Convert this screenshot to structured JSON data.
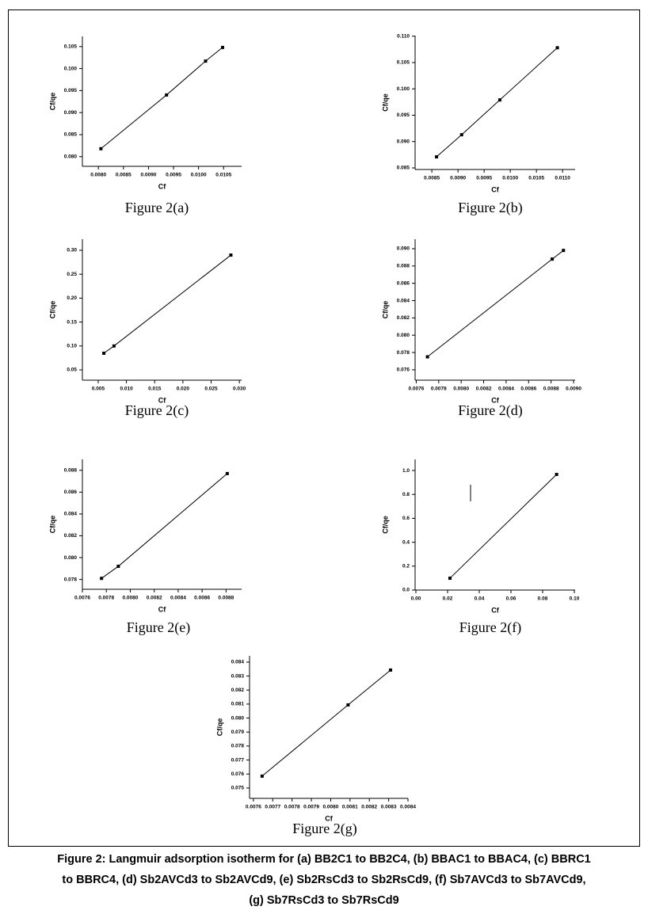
{
  "chart_data": [
    {
      "type": "line",
      "caption": "Figure 2(a)",
      "xlabel": "Cf",
      "ylabel": "Cf/qe",
      "color": "#000000",
      "x": [
        0.00805,
        0.00936,
        0.01014,
        0.01048
      ],
      "values": [
        0.0818,
        0.094,
        0.1017,
        0.1048
      ],
      "xlim": [
        0.00768,
        0.01086
      ],
      "ylim": [
        0.0778,
        0.1073
      ],
      "xticks": [
        {
          "value": 0.008,
          "label": "0.0080"
        },
        0.0085,
        {
          "value": 0.009,
          "label": "0.0090"
        },
        0.0095,
        {
          "value": 0.01,
          "label": "0.0100"
        },
        0.0105
      ],
      "yticks": [
        {
          "value": 0.08,
          "label": "0.080"
        },
        0.085,
        {
          "value": 0.09,
          "label": "0.090"
        },
        0.095,
        {
          "value": 0.1,
          "label": "0.100"
        },
        0.105
      ]
    },
    {
      "type": "line",
      "caption": "Figure 2(b)",
      "xlabel": "Cf",
      "ylabel": "Cf/qe",
      "color": "#000000",
      "x": [
        0.00859,
        0.00907,
        0.0098,
        0.0109
      ],
      "values": [
        0.0871,
        0.0913,
        0.0979,
        0.1078
      ],
      "xlim": [
        0.00818,
        0.01124
      ],
      "ylim": [
        0.0847,
        0.1101
      ],
      "xticks": [
        0.0085,
        {
          "value": 0.009,
          "label": "0.0090"
        },
        0.0095,
        {
          "value": 0.01,
          "label": "0.0100"
        },
        0.0105,
        {
          "value": 0.011,
          "label": "0.0110"
        }
      ],
      "yticks": [
        0.085,
        {
          "value": 0.09,
          "label": "0.090"
        },
        0.095,
        {
          "value": 0.1,
          "label": "0.100"
        },
        0.105,
        {
          "value": 0.11,
          "label": "0.110"
        }
      ]
    },
    {
      "type": "line",
      "caption": "Figure 2(c)",
      "xlabel": "Cf",
      "ylabel": "Cf/qe",
      "color": "#000000",
      "x": [
        0.006,
        0.0078,
        0.0285
      ],
      "values": [
        0.0848,
        0.1,
        0.29
      ],
      "xlim": [
        0.0022,
        0.0304
      ],
      "ylim": [
        0.0285,
        0.3232
      ],
      "xticks": [
        0.005,
        {
          "value": 0.01,
          "label": "0.010"
        },
        0.015,
        {
          "value": 0.02,
          "label": "0.020"
        },
        0.025,
        {
          "value": 0.03,
          "label": "0.030"
        }
      ],
      "yticks": [
        0.05,
        {
          "value": 0.1,
          "label": "0.10"
        },
        0.15,
        {
          "value": 0.2,
          "label": "0.20"
        },
        0.25,
        {
          "value": 0.3,
          "label": "0.30"
        }
      ]
    },
    {
      "type": "line",
      "caption": "Figure 2(d)",
      "xlabel": "Cf",
      "ylabel": "Cf/qe",
      "color": "#000000",
      "x": [
        0.0077,
        0.00881,
        0.00891
      ],
      "values": [
        0.0775,
        0.0888,
        0.0898
      ],
      "xlim": [
        0.00759,
        0.009014
      ],
      "ylim": [
        0.0748,
        0.0911
      ],
      "xticks": [
        0.0076,
        0.0078,
        {
          "value": 0.008,
          "label": "0.0080"
        },
        0.0082,
        0.0084,
        0.0086,
        0.0088,
        {
          "value": 0.009,
          "label": "0.0090"
        }
      ],
      "yticks": [
        0.076,
        0.078,
        {
          "value": 0.08,
          "label": "0.080"
        },
        0.082,
        0.084,
        0.086,
        0.088,
        {
          "value": 0.09,
          "label": "0.090"
        }
      ]
    },
    {
      "type": "line",
      "caption": "Figure 2(e)",
      "xlabel": "Cf",
      "ylabel": "Cf/qe",
      "color": "#000000",
      "x": [
        0.00776,
        0.0079,
        0.00881
      ],
      "values": [
        0.0781,
        0.0792,
        0.0877
      ],
      "xlim": [
        0.0076,
        0.00893
      ],
      "ylim": [
        0.0771,
        0.089
      ],
      "xticks": [
        0.0076,
        0.0078,
        {
          "value": 0.008,
          "label": "0.0080"
        },
        0.0082,
        0.0084,
        0.0086,
        0.0088
      ],
      "yticks": [
        0.078,
        {
          "value": 0.08,
          "label": "0.080"
        },
        0.082,
        0.084,
        0.086,
        0.088
      ]
    },
    {
      "type": "line",
      "caption": "Figure 2(f)",
      "xlabel": "Cf",
      "ylabel": "Cf/qe",
      "color": "#000000",
      "x": [
        0.0215,
        0.0888
      ],
      "values": [
        0.099,
        0.967
      ],
      "xlim": [
        -0.0005,
        0.1005
      ],
      "ylim": [
        0,
        1.093
      ],
      "xticks": [
        {
          "value": 0,
          "label": "0.00"
        },
        0.02,
        0.04,
        0.06,
        0.08,
        {
          "value": 0.1,
          "label": "0.10"
        }
      ],
      "yticks": [
        {
          "value": 0,
          "label": "0.0"
        },
        0.2,
        0.4,
        0.6,
        0.8,
        {
          "value": 1,
          "label": "1.0"
        }
      ]
    },
    {
      "type": "line",
      "caption": "Figure 2(g)",
      "xlabel": "Cf",
      "ylabel": "Cf/qe",
      "color": "#000000",
      "x": [
        0.007645,
        0.00809,
        0.00831
      ],
      "values": [
        0.07585,
        0.08094,
        0.08343
      ],
      "xlim": [
        0.00758,
        0.0084
      ],
      "ylim": [
        0.07426,
        0.08445
      ],
      "xticks": [
        0.0076,
        0.0077,
        0.0078,
        0.0079,
        {
          "value": 0.008,
          "label": "0.0080"
        },
        0.0081,
        0.0082,
        0.0083,
        0.0084
      ],
      "yticks": [
        0.075,
        0.076,
        0.077,
        0.078,
        0.079,
        {
          "value": 0.08,
          "label": "0.080"
        },
        0.081,
        0.082,
        0.083,
        0.084
      ]
    }
  ],
  "caption": [
    "Figure 2: Langmuir adsorption isotherm for (a) BB2C1 to BB2C4, (b) BBAC1 to BBAC4, (c) BBRC1",
    "to BBRC4, (d) Sb2AVCd3 to Sb2AVCd9, (e) Sb2RsCd3 to Sb2RsCd9, (f) Sb7AVCd3 to Sb7AVCd9,",
    "(g) Sb7RsCd3 to Sb7RsCd9"
  ]
}
